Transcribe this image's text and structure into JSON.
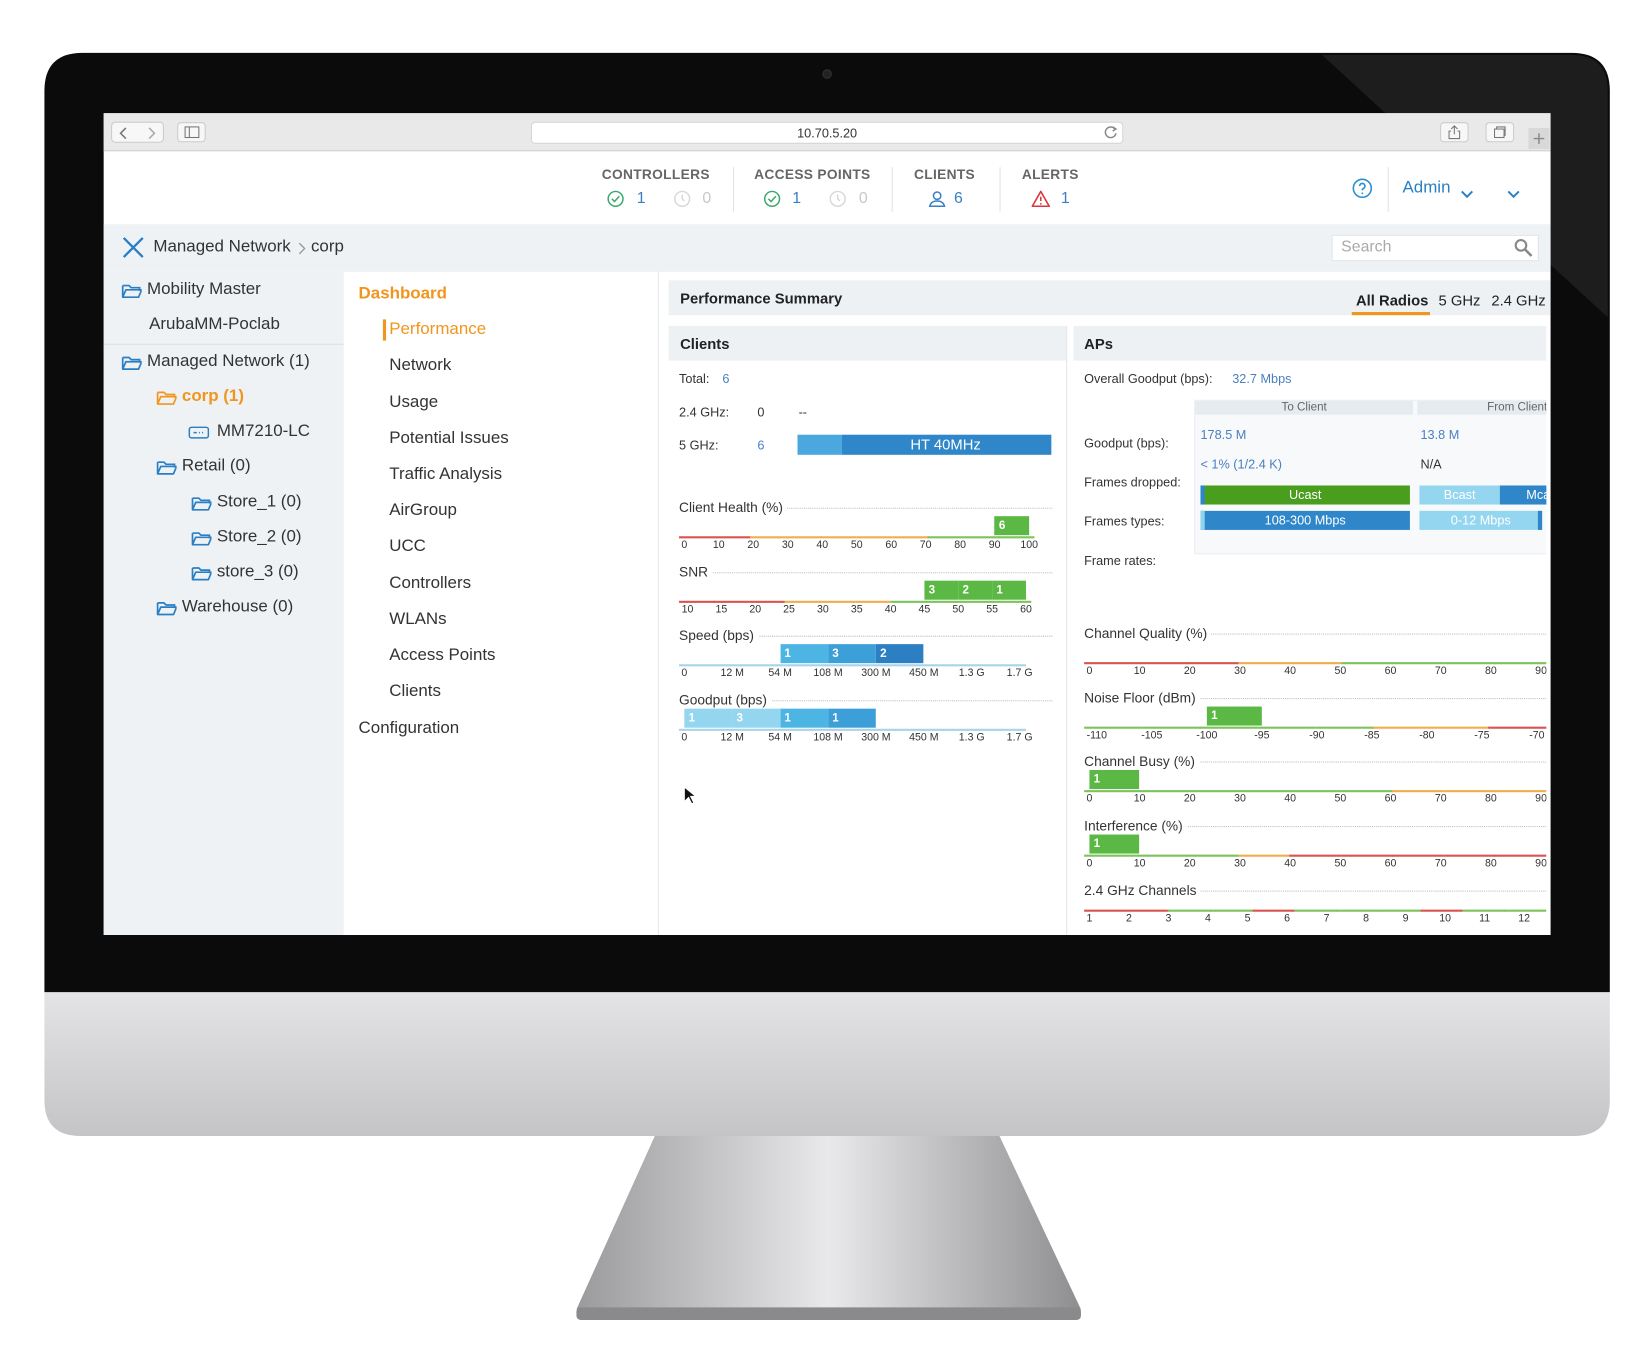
{
  "browser": {
    "url": "10.70.5.20"
  },
  "header": {
    "stats": [
      {
        "label": "CONTROLLERS",
        "up": 1,
        "down": 0
      },
      {
        "label": "ACCESS POINTS",
        "up": 1,
        "down": 0
      },
      {
        "label": "CLIENTS",
        "value": 6
      },
      {
        "label": "ALERTS",
        "value": 1
      }
    ],
    "user": "Admin"
  },
  "breadcrumb": {
    "items": [
      "Managed Network",
      "corp"
    ],
    "search": "Search"
  },
  "tree": {
    "items": [
      "Mobility Master",
      "ArubaMM-Poclab",
      "Managed Network (1)",
      "corp (1)",
      "MM7210-LC",
      "Retail (0)",
      "Store_1 (0)",
      "Store_2 (0)",
      "store_3 (0)",
      "Warehouse (0)"
    ]
  },
  "nav": {
    "section": "Dashboard",
    "items": [
      "Performance",
      "Network",
      "Usage",
      "Potential Issues",
      "Traffic Analysis",
      "AirGroup",
      "UCC",
      "Controllers",
      "WLANs",
      "Access Points",
      "Clients"
    ],
    "footer": "Configuration"
  },
  "summary": {
    "title": "Performance Summary",
    "tabs": [
      "All Radios",
      "5 GHz",
      "2.4 GHz"
    ]
  },
  "clients": {
    "title": "Clients",
    "rows": [
      {
        "label": "Total:",
        "value": 6
      },
      {
        "label": "2.4 GHz:",
        "value": 0,
        "note": "--"
      },
      {
        "label": "5 GHz:",
        "value": 6,
        "bar": "HT 40MHz"
      }
    ],
    "charts": [
      {
        "title": "Client Health (%)",
        "ticks": [
          0,
          10,
          20,
          30,
          40,
          50,
          60,
          70,
          80,
          90,
          100
        ],
        "bars": [
          {
            "from": 90,
            "to": 100,
            "count": 6,
            "color": "#5cb845"
          }
        ],
        "baseline": [
          "#d9534f",
          "#d9534f",
          "#f0ad4e",
          "#f0ad4e",
          "#f0ad4e",
          "#f0ad4e",
          "#f0ad4e",
          "#7cc35a",
          "#7cc35a",
          "#7cc35a"
        ]
      },
      {
        "title": "SNR",
        "ticks": [
          10,
          15,
          20,
          25,
          30,
          35,
          40,
          45,
          50,
          55,
          60
        ],
        "bars": [
          {
            "from": 45,
            "to": 50,
            "count": 3,
            "color": "#5cb845"
          },
          {
            "from": 50,
            "to": 55,
            "count": 2,
            "color": "#5cb845"
          },
          {
            "from": 55,
            "to": 60,
            "count": 1,
            "color": "#5cb845"
          }
        ],
        "baseline": [
          "#d9534f",
          "#d9534f",
          "#d9534f",
          "#f0ad4e",
          "#f0ad4e",
          "#f0ad4e",
          "#7cc35a",
          "#7cc35a",
          "#7cc35a",
          "#7cc35a"
        ]
      },
      {
        "title": "Speed (bps)",
        "ticks": [
          0,
          "12 M",
          "54 M",
          "108 M",
          "300 M",
          "450 M",
          "1.3 G",
          "1.7 G"
        ],
        "bars": [
          {
            "from": "54 M",
            "to": "108 M",
            "count": 1,
            "color": "#4db5e3"
          },
          {
            "from": "108 M",
            "to": "300 M",
            "count": 3,
            "color": "#3d9fd8"
          },
          {
            "from": "300 M",
            "to": "450 M",
            "count": 2,
            "color": "#2b7fc2"
          }
        ],
        "baseline": [
          "#a7d4ea"
        ]
      },
      {
        "title": "Goodput (bps)",
        "ticks": [
          0,
          "12 M",
          "54 M",
          "108 M",
          "300 M",
          "450 M",
          "1.3 G",
          "1.7 G"
        ],
        "bars": [
          {
            "from": 0,
            "to": "12 M",
            "count": 1,
            "color": "#94d6ef"
          },
          {
            "from": "12 M",
            "to": "54 M",
            "count": 3,
            "color": "#94d6ef"
          },
          {
            "from": "54 M",
            "to": "108 M",
            "count": 1,
            "color": "#4db5e3"
          },
          {
            "from": "108 M",
            "to": "300 M",
            "count": 1,
            "color": "#3d9fd8"
          }
        ],
        "baseline": [
          "#a7d4ea"
        ]
      }
    ]
  },
  "aps": {
    "title": "APs",
    "goodput_label": "Overall Goodput (bps):",
    "goodput": "32.7 Mbps",
    "columns": [
      "To Client",
      "From Client"
    ],
    "row_labels": [
      "Goodput (bps):",
      "Frames dropped:",
      "Frames types:",
      "Frame rates:"
    ],
    "to_client": {
      "goodput": "178.5 M",
      "dropped": "< 1% (1/2.4 K)",
      "types": "Ucast",
      "rates": "108-300 Mbps"
    },
    "from_client": {
      "goodput": "13.8 M",
      "dropped": "N/A",
      "types": [
        "Bcast",
        "Mcast"
      ],
      "rates": "0-12 Mbps"
    },
    "charts": [
      {
        "title": "Channel Quality (%)",
        "ticks": [
          0,
          10,
          20,
          30,
          40,
          50,
          60,
          70,
          80,
          90
        ],
        "bars": [],
        "baseline": [
          "#d9534f",
          "#d9534f",
          "#d9534f",
          "#f0ad4e",
          "#f0ad4e",
          "#7cc35a",
          "#7cc35a",
          "#7cc35a",
          "#7cc35a"
        ]
      },
      {
        "title": "Noise Floor (dBm)",
        "ticks": [
          -110,
          -105,
          -100,
          -95,
          -90,
          -85,
          -80,
          -75,
          -70
        ],
        "bars": [
          {
            "from": -100,
            "to": -95,
            "count": 1,
            "color": "#5cb845"
          }
        ],
        "baseline": [
          "#7cc35a",
          "#7cc35a",
          "#7cc35a",
          "#7cc35a",
          "#7cc35a",
          "#f0ad4e",
          "#f0ad4e",
          "#d9534f"
        ]
      },
      {
        "title": "Channel Busy (%)",
        "ticks": [
          0,
          10,
          20,
          30,
          40,
          50,
          60,
          70,
          80,
          90
        ],
        "bars": [
          {
            "from": 0,
            "to": 10,
            "count": 1,
            "color": "#5cb845"
          }
        ],
        "baseline": [
          "#7cc35a",
          "#7cc35a",
          "#7cc35a",
          "#7cc35a",
          "#7cc35a",
          "#7cc35a",
          "#f0ad4e",
          "#f0ad4e",
          "#f0ad4e"
        ]
      },
      {
        "title": "Interference (%)",
        "ticks": [
          0,
          10,
          20,
          30,
          40,
          50,
          60,
          70,
          80,
          90
        ],
        "bars": [
          {
            "from": 0,
            "to": 10,
            "count": 1,
            "color": "#5cb845"
          }
        ],
        "baseline": [
          "#7cc35a",
          "#7cc35a",
          "#7cc35a",
          "#f0ad4e",
          "#d9534f",
          "#d9534f",
          "#d9534f",
          "#d9534f",
          "#d9534f"
        ]
      },
      {
        "title": "2.4 GHz Channels",
        "ticks": [
          1,
          2,
          3,
          4,
          5,
          6,
          7,
          8,
          9,
          10,
          11,
          12
        ],
        "bars": [],
        "baseline": [
          "#d9534f",
          "#d9534f",
          "#7cc35a",
          "#7cc35a",
          "#d9534f",
          "#7cc35a",
          "#7cc35a",
          "#7cc35a",
          "#d9534f",
          "#7cc35a",
          "#7cc35a"
        ]
      }
    ]
  }
}
